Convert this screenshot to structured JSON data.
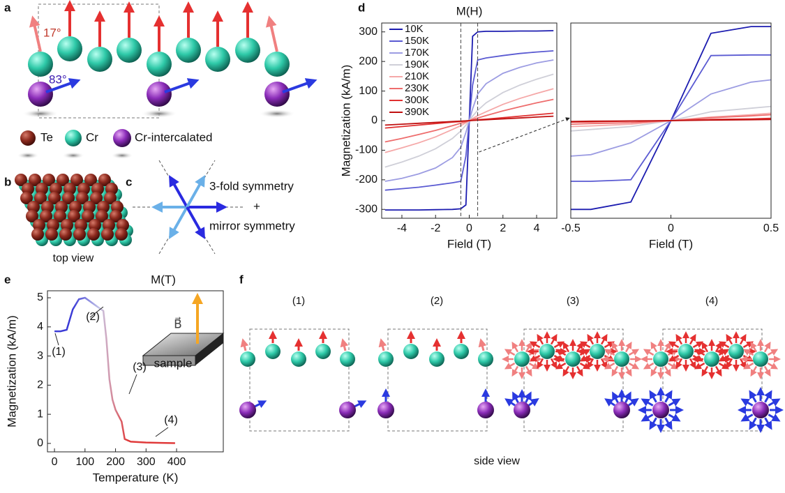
{
  "panel_labels": [
    "a",
    "b",
    "c",
    "d",
    "e",
    "f"
  ],
  "panel_a": {
    "angle_cr": "17°",
    "angle_ci": "83°",
    "legend": [
      "Te",
      "Cr",
      "Cr-intercalated"
    ]
  },
  "panel_b": {
    "caption": "top view"
  },
  "panel_c": {
    "lines": [
      "3-fold symmetry",
      "+",
      "mirror symmetry"
    ]
  },
  "panel_f": {
    "states": [
      "(1)",
      "(2)",
      "(3)",
      "(4)"
    ],
    "caption": "side view"
  },
  "chart_data": [
    {
      "type": "line",
      "title": "M(H)",
      "x_label": "Field (T)",
      "y_label": "Magnetization (kA/m)",
      "xlim": [
        -5.2,
        5.2
      ],
      "ylim": [
        -330,
        330
      ],
      "xticks": [
        -4,
        -2,
        0,
        2,
        4
      ],
      "yticks": [
        -300,
        -200,
        -100,
        0,
        100,
        200,
        300
      ],
      "zoom_range": [
        -0.5,
        0.5
      ],
      "x": [
        -5,
        -4,
        -3,
        -2,
        -1,
        -0.5,
        -0.2,
        0,
        0.2,
        0.5,
        1,
        2,
        3,
        4,
        5
      ],
      "series": [
        {
          "name": "10K",
          "color": "#1c1cb0",
          "values": [
            -302,
            -302,
            -302,
            -301,
            -300,
            -298,
            -285,
            0,
            285,
            300,
            302,
            302,
            303,
            303,
            304
          ]
        },
        {
          "name": "150K",
          "color": "#5a5ad2",
          "values": [
            -235,
            -230,
            -225,
            -218,
            -210,
            -205,
            -120,
            0,
            120,
            205,
            212,
            220,
            227,
            232,
            236
          ]
        },
        {
          "name": "170K",
          "color": "#9c9ce2",
          "values": [
            -205,
            -195,
            -180,
            -160,
            -125,
            -90,
            -40,
            0,
            40,
            90,
            125,
            160,
            180,
            195,
            205
          ]
        },
        {
          "name": "190K",
          "color": "#cfcfd8",
          "values": [
            -157,
            -140,
            -120,
            -95,
            -60,
            -35,
            -15,
            0,
            15,
            35,
            60,
            95,
            120,
            140,
            157
          ]
        },
        {
          "name": "210K",
          "color": "#f5a8a8",
          "values": [
            -108,
            -92,
            -75,
            -55,
            -30,
            -17,
            -7,
            0,
            7,
            17,
            30,
            55,
            75,
            92,
            108
          ]
        },
        {
          "name": "230K",
          "color": "#ee6d6d",
          "values": [
            -72,
            -60,
            -47,
            -33,
            -17,
            -9,
            -4,
            0,
            4,
            9,
            17,
            33,
            47,
            60,
            72
          ]
        },
        {
          "name": "300K",
          "color": "#e03030",
          "values": [
            -25,
            -20,
            -15,
            -10,
            -5,
            -3,
            -1,
            0,
            1,
            3,
            5,
            10,
            15,
            20,
            25
          ]
        },
        {
          "name": "390K",
          "color": "#c01010",
          "values": [
            -15,
            -12,
            -9,
            -6,
            -3,
            -1.5,
            -0.6,
            0,
            0.6,
            1.5,
            3,
            6,
            9,
            12,
            15
          ]
        }
      ]
    },
    {
      "type": "line",
      "x_label": "Field (T)",
      "xlim": [
        -0.5,
        0.5
      ],
      "ylim": [
        -330,
        330
      ],
      "xticks": [
        -0.5,
        0,
        0.5
      ],
      "x": [
        -0.5,
        -0.4,
        -0.2,
        0,
        0.2,
        0.4,
        0.5
      ],
      "series": [
        {
          "color": "#1c1cb0",
          "values": [
            -300,
            -300,
            -275,
            0,
            295,
            318,
            318
          ]
        },
        {
          "color": "#5a5ad2",
          "values": [
            -205,
            -205,
            -200,
            0,
            220,
            222,
            222
          ]
        },
        {
          "color": "#9c9ce2",
          "values": [
            -120,
            -115,
            -75,
            0,
            90,
            130,
            138
          ]
        },
        {
          "color": "#cfcfd8",
          "values": [
            -35,
            -30,
            -20,
            0,
            30,
            42,
            48
          ]
        },
        {
          "color": "#f5a8a8",
          "values": [
            -20,
            -18,
            -12,
            0,
            12,
            20,
            25
          ]
        },
        {
          "color": "#ee6d6d",
          "values": [
            -12,
            -10,
            -7,
            0,
            10,
            16,
            20
          ]
        },
        {
          "color": "#e03030",
          "values": [
            -5,
            -4,
            -2,
            0,
            4,
            6,
            8
          ]
        },
        {
          "color": "#c01010",
          "values": [
            -3,
            -2,
            -1,
            0,
            2,
            3,
            4
          ]
        }
      ]
    },
    {
      "type": "line",
      "title": "M(T)",
      "x_label": "Temperature (K)",
      "y_label": "Magnetization (kA/m)",
      "xlim": [
        -23,
        553
      ],
      "ylim": [
        -0.29,
        5.24
      ],
      "xticks": [
        0,
        100,
        200,
        300,
        400
      ],
      "yticks": [
        0,
        1,
        2,
        3,
        4,
        5
      ],
      "colors": [
        "#3b3bd6",
        "#c9c9e8",
        "#e03a3a"
      ],
      "x": [
        0,
        10,
        20,
        40,
        60,
        80,
        100,
        120,
        140,
        160,
        170,
        180,
        190,
        200,
        210,
        220,
        230,
        250,
        300,
        350,
        395
      ],
      "values": [
        3.85,
        3.85,
        3.85,
        3.9,
        4.6,
        4.95,
        5.0,
        4.85,
        4.7,
        4.55,
        3.6,
        2.2,
        1.5,
        1.15,
        0.95,
        0.75,
        0.15,
        0.06,
        0.03,
        0.02,
        0.01
      ],
      "annotations": [
        "(1)",
        "(2)",
        "(3)",
        "(4)"
      ],
      "inset_labels": [
        "B⃗",
        "sample"
      ]
    }
  ]
}
